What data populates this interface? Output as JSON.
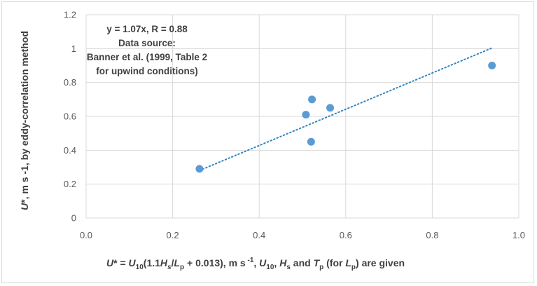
{
  "chart_data": {
    "type": "scatter",
    "x": [
      0.262,
      0.508,
      0.52,
      0.522,
      0.564,
      0.938
    ],
    "y": [
      0.29,
      0.61,
      0.45,
      0.7,
      0.65,
      0.9
    ],
    "xlim": [
      0,
      1.0
    ],
    "ylim": [
      0,
      1.2
    ],
    "xticks": [
      "0.0",
      "0.2",
      "0.4",
      "0.6",
      "0.8",
      "1.0"
    ],
    "yticks": [
      "0",
      "0.2",
      "0.4",
      "0.6",
      "0.8",
      "1",
      "1.2"
    ],
    "grid": true,
    "trendline": {
      "type": "linear",
      "slope": 1.07,
      "intercept": 0,
      "style": "dotted",
      "x_range": [
        0.262,
        0.938
      ]
    },
    "marker_color": "#5b9bd5",
    "trendline_color": "#2e86c1",
    "annotation": {
      "line1": "y = 1.07x, R = 0.88",
      "line2": "Data source:",
      "line3": "Banner et al. (1999, Table 2",
      "line4": "for upwind conditions)"
    },
    "xlabel": "U* = U10(1.1Hs/Lp + 0.013), m s -1, U10, Hs and Tp (for Lp) are given",
    "ylabel": "U*, m s -1, by eddy-correlation method"
  }
}
